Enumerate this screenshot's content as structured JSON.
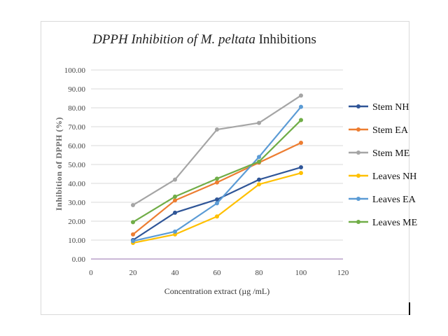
{
  "chart_data": {
    "type": "line",
    "title_parts": [
      {
        "text": "DPPH Inhibition of ",
        "italic": true
      },
      {
        "text": "M. peltata",
        "italic": true
      },
      {
        "text": " Inhibitions",
        "italic": false
      }
    ],
    "xlabel": "Concentration extract (µg /mL)",
    "ylabel": "Inhibition of DPPH (%)",
    "xlim": [
      0,
      120
    ],
    "ylim": [
      0,
      100
    ],
    "x_ticks": [
      "0",
      "20",
      "40",
      "60",
      "80",
      "100",
      "120"
    ],
    "y_ticks": [
      "0.00",
      "10.00",
      "20.00",
      "30.00",
      "40.00",
      "50.00",
      "60.00",
      "70.00",
      "80.00",
      "90.00",
      "100.00"
    ],
    "grid": true,
    "legend_position": "right",
    "x": [
      20,
      40,
      60,
      80,
      100
    ],
    "series": [
      {
        "name": "Stem NH",
        "color": "#2f5597",
        "values": [
          10.0,
          24.5,
          31.5,
          42.0,
          48.5
        ]
      },
      {
        "name": "Stem EA",
        "color": "#ed7d31",
        "values": [
          13.0,
          31.0,
          40.5,
          51.0,
          61.5
        ]
      },
      {
        "name": "Stem ME",
        "color": "#a5a5a5",
        "values": [
          28.5,
          42.0,
          68.5,
          72.0,
          86.5
        ]
      },
      {
        "name": "Leaves NH",
        "color": "#ffc000",
        "values": [
          8.5,
          13.0,
          22.5,
          39.5,
          45.5
        ]
      },
      {
        "name": "Leaves EA",
        "color": "#5b9bd5",
        "values": [
          9.5,
          14.5,
          29.5,
          54.0,
          80.5
        ]
      },
      {
        "name": "Leaves ME",
        "color": "#70ad47",
        "values": [
          19.5,
          33.0,
          42.5,
          51.5,
          73.5
        ]
      }
    ]
  }
}
